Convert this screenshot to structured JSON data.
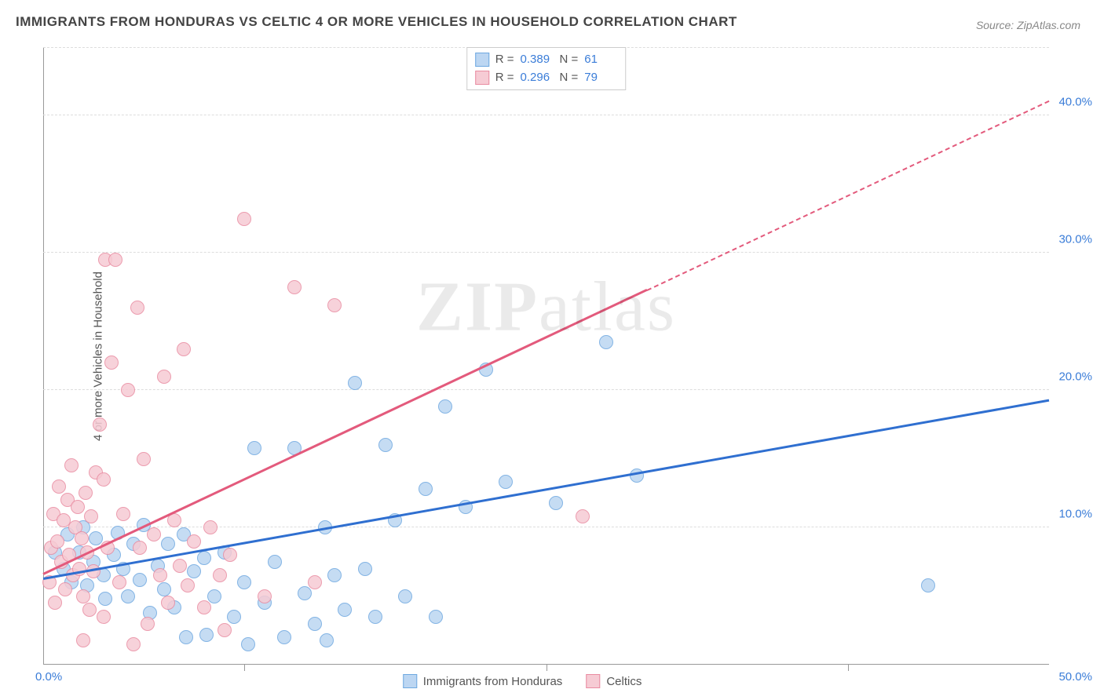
{
  "title": "IMMIGRANTS FROM HONDURAS VS CELTIC 4 OR MORE VEHICLES IN HOUSEHOLD CORRELATION CHART",
  "source": "Source: ZipAtlas.com",
  "y_axis_title": "4 or more Vehicles in Household",
  "watermark_1": "ZIP",
  "watermark_2": "atlas",
  "chart": {
    "type": "scatter",
    "xlim": [
      0,
      50
    ],
    "ylim": [
      0,
      45
    ],
    "x_origin_label": "0.0%",
    "x_max_label": "50.0%",
    "y_ticks": [
      {
        "v": 10,
        "label": "10.0%"
      },
      {
        "v": 20,
        "label": "20.0%"
      },
      {
        "v": 30,
        "label": "30.0%"
      },
      {
        "v": 40,
        "label": "40.0%"
      }
    ],
    "x_gridline_positions": [
      10,
      25,
      40
    ],
    "background_color": "#ffffff",
    "grid_color": "#dddddd",
    "axis_color": "#999999",
    "label_color": "#3b7dd8",
    "marker_size": 18,
    "series": [
      {
        "name": "Immigrants from Honduras",
        "fill": "#bcd6f2",
        "stroke": "#6ea8e0",
        "r": 0.389,
        "n": 61,
        "trend": {
          "x1": 0,
          "y1": 6.2,
          "x2": 50,
          "y2": 19.2,
          "color": "#2f6fd0",
          "dash_from_x": null
        },
        "points": [
          [
            0.6,
            8.2
          ],
          [
            1.0,
            7.0
          ],
          [
            1.2,
            9.5
          ],
          [
            1.4,
            6.0
          ],
          [
            1.8,
            8.2
          ],
          [
            2.0,
            10.0
          ],
          [
            2.2,
            5.8
          ],
          [
            2.5,
            7.5
          ],
          [
            2.6,
            9.2
          ],
          [
            3.0,
            6.5
          ],
          [
            3.1,
            4.8
          ],
          [
            3.5,
            8.0
          ],
          [
            3.7,
            9.6
          ],
          [
            4.0,
            7.0
          ],
          [
            4.2,
            5.0
          ],
          [
            4.5,
            8.8
          ],
          [
            4.8,
            6.2
          ],
          [
            5.0,
            10.2
          ],
          [
            5.3,
            3.8
          ],
          [
            5.7,
            7.2
          ],
          [
            6.0,
            5.5
          ],
          [
            6.2,
            8.8
          ],
          [
            6.5,
            4.2
          ],
          [
            7.0,
            9.5
          ],
          [
            7.1,
            2.0
          ],
          [
            7.5,
            6.8
          ],
          [
            8.0,
            7.8
          ],
          [
            8.1,
            2.2
          ],
          [
            8.5,
            5.0
          ],
          [
            9.0,
            8.2
          ],
          [
            9.5,
            3.5
          ],
          [
            10.0,
            6.0
          ],
          [
            10.2,
            1.5
          ],
          [
            10.5,
            15.8
          ],
          [
            11.0,
            4.5
          ],
          [
            11.5,
            7.5
          ],
          [
            12.0,
            2.0
          ],
          [
            12.5,
            15.8
          ],
          [
            13.0,
            5.2
          ],
          [
            13.5,
            3.0
          ],
          [
            14.0,
            10.0
          ],
          [
            14.1,
            1.8
          ],
          [
            14.5,
            6.5
          ],
          [
            15.0,
            4.0
          ],
          [
            15.5,
            20.5
          ],
          [
            16.0,
            7.0
          ],
          [
            16.5,
            3.5
          ],
          [
            17.0,
            16.0
          ],
          [
            17.5,
            10.5
          ],
          [
            18.0,
            5.0
          ],
          [
            19.0,
            12.8
          ],
          [
            19.5,
            3.5
          ],
          [
            20.0,
            18.8
          ],
          [
            21.0,
            11.5
          ],
          [
            22.0,
            21.5
          ],
          [
            23.0,
            13.3
          ],
          [
            25.5,
            11.8
          ],
          [
            28.0,
            23.5
          ],
          [
            29.5,
            13.8
          ],
          [
            44.0,
            5.8
          ]
        ]
      },
      {
        "name": "Celtics",
        "fill": "#f6cbd4",
        "stroke": "#e98ba1",
        "r": 0.296,
        "n": 79,
        "trend": {
          "x1": 0,
          "y1": 6.5,
          "x2": 50,
          "y2": 41.0,
          "color": "#e35a7c",
          "dash_from_x": 30
        },
        "points": [
          [
            0.3,
            6.0
          ],
          [
            0.4,
            8.5
          ],
          [
            0.5,
            11.0
          ],
          [
            0.6,
            4.5
          ],
          [
            0.7,
            9.0
          ],
          [
            0.8,
            13.0
          ],
          [
            0.9,
            7.5
          ],
          [
            1.0,
            10.5
          ],
          [
            1.1,
            5.5
          ],
          [
            1.2,
            12.0
          ],
          [
            1.3,
            8.0
          ],
          [
            1.4,
            14.5
          ],
          [
            1.5,
            6.5
          ],
          [
            1.6,
            10.0
          ],
          [
            1.7,
            11.5
          ],
          [
            1.8,
            7.0
          ],
          [
            1.9,
            9.2
          ],
          [
            2.0,
            5.0
          ],
          [
            2.1,
            12.5
          ],
          [
            2.2,
            8.2
          ],
          [
            2.3,
            4.0
          ],
          [
            2.4,
            10.8
          ],
          [
            2.5,
            6.8
          ],
          [
            2.6,
            14.0
          ],
          [
            2.8,
            17.5
          ],
          [
            3.0,
            3.5
          ],
          [
            3.1,
            29.5
          ],
          [
            3.2,
            8.5
          ],
          [
            3.4,
            22.0
          ],
          [
            3.6,
            29.5
          ],
          [
            3.8,
            6.0
          ],
          [
            4.0,
            11.0
          ],
          [
            4.2,
            20.0
          ],
          [
            4.5,
            1.5
          ],
          [
            4.7,
            26.0
          ],
          [
            4.8,
            8.5
          ],
          [
            5.0,
            15.0
          ],
          [
            5.2,
            3.0
          ],
          [
            5.5,
            9.5
          ],
          [
            5.8,
            6.5
          ],
          [
            6.0,
            21.0
          ],
          [
            6.2,
            4.5
          ],
          [
            6.5,
            10.5
          ],
          [
            6.8,
            7.2
          ],
          [
            7.0,
            23.0
          ],
          [
            7.2,
            5.8
          ],
          [
            7.5,
            9.0
          ],
          [
            8.0,
            4.2
          ],
          [
            8.3,
            10.0
          ],
          [
            8.8,
            6.5
          ],
          [
            9.0,
            2.5
          ],
          [
            9.3,
            8.0
          ],
          [
            10.0,
            32.5
          ],
          [
            11.0,
            5.0
          ],
          [
            12.5,
            27.5
          ],
          [
            13.5,
            6.0
          ],
          [
            14.5,
            26.2
          ],
          [
            26.8,
            10.8
          ],
          [
            3.0,
            13.5
          ],
          [
            2.0,
            1.8
          ]
        ]
      }
    ]
  },
  "legend_top": [
    {
      "sw_fill": "#bcd6f2",
      "sw_stroke": "#6ea8e0",
      "r_label": "R =",
      "r_val": "0.389",
      "n_label": "N =",
      "n_val": "61"
    },
    {
      "sw_fill": "#f6cbd4",
      "sw_stroke": "#e98ba1",
      "r_label": "R =",
      "r_val": "0.296",
      "n_label": "N =",
      "n_val": "79"
    }
  ],
  "legend_bottom": [
    {
      "sw_fill": "#bcd6f2",
      "sw_stroke": "#6ea8e0",
      "label": "Immigrants from Honduras"
    },
    {
      "sw_fill": "#f6cbd4",
      "sw_stroke": "#e98ba1",
      "label": "Celtics"
    }
  ]
}
